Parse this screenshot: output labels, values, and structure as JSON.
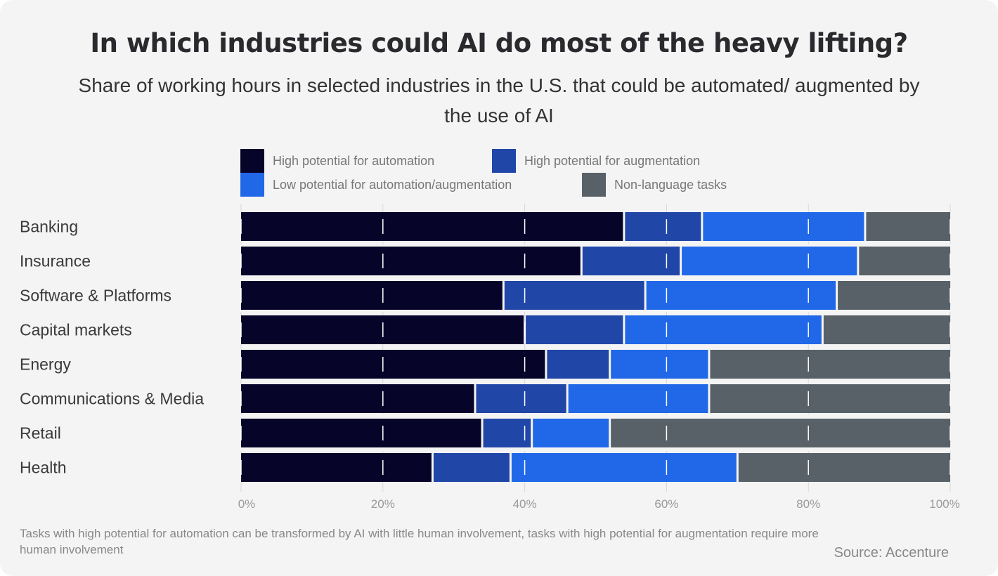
{
  "title": "In which industries could AI do most of the heavy lifting?",
  "subtitle": "Share of working hours in selected industries in the U.S. that could be automated/ augmented by the use of AI",
  "footnote": "Tasks with high potential for automation can be transformed by AI with little human involvement, tasks with high potential for augmentation require more human involvement",
  "source": "Source: Accenture",
  "chart_data": {
    "type": "bar",
    "orientation": "horizontal",
    "stacked": true,
    "title": "In which industries could AI do most of the heavy lifting?",
    "xlim": [
      0,
      100
    ],
    "x_ticks": [
      "0%",
      "20%",
      "40%",
      "60%",
      "80%",
      "100%"
    ],
    "grid": true,
    "legend_position": "top",
    "categories": [
      "Banking",
      "Insurance",
      "Software & Platforms",
      "Capital markets",
      "Energy",
      "Communications & Media",
      "Retail",
      "Health"
    ],
    "series": [
      {
        "name": "High potential for automation",
        "color": "#07042a",
        "values": [
          54,
          48,
          37,
          40,
          43,
          33,
          34,
          27
        ]
      },
      {
        "name": "High potential for augmentation",
        "color": "#2046a8",
        "values": [
          11,
          14,
          20,
          14,
          9,
          13,
          7,
          11
        ]
      },
      {
        "name": "Low potential for automation/augmentation",
        "color": "#2168e8",
        "values": [
          23,
          25,
          27,
          28,
          14,
          20,
          11,
          32
        ]
      },
      {
        "name": "Non-language tasks",
        "color": "#596168",
        "values": [
          12,
          13,
          16,
          18,
          34,
          34,
          48,
          30
        ]
      }
    ]
  }
}
